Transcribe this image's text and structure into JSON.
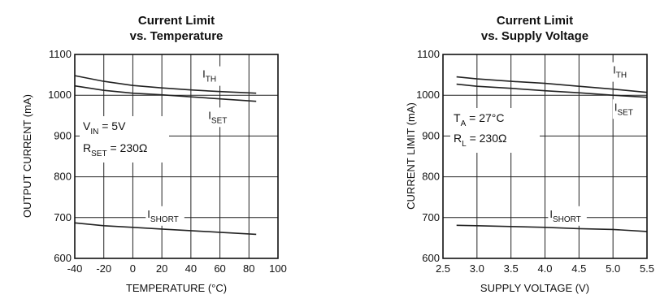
{
  "chart_data": [
    {
      "type": "line",
      "title": "Current Limit",
      "subtitle": "vs. Temperature",
      "xlabel": "TEMPERATURE (°C)",
      "ylabel": "OUTPUT CURRENT (mA)",
      "xlim": [
        -40,
        100
      ],
      "ylim": [
        600,
        1100
      ],
      "x_ticks": [
        -40,
        -20,
        0,
        20,
        40,
        60,
        80,
        100
      ],
      "y_ticks": [
        600,
        700,
        800,
        900,
        1000,
        1100
      ],
      "grid": true,
      "annotation": {
        "line1": {
          "main": "V",
          "sub": "IN",
          "rest": " = 5V"
        },
        "line2": {
          "main": "R",
          "sub": "SET",
          "rest": " = 230Ω"
        }
      },
      "series": [
        {
          "name": "TH",
          "prefix": "I",
          "label_at": [
            48,
            1043
          ],
          "points": [
            [
              -40,
              1048
            ],
            [
              -20,
              1034
            ],
            [
              0,
              1024
            ],
            [
              20,
              1018
            ],
            [
              40,
              1013
            ],
            [
              60,
              1009
            ],
            [
              85,
              1005
            ]
          ]
        },
        {
          "name": "SET",
          "prefix": "I",
          "label_at": [
            52,
            942
          ],
          "points": [
            [
              -40,
              1023
            ],
            [
              -20,
              1012
            ],
            [
              0,
              1005
            ],
            [
              20,
              1001
            ],
            [
              40,
              996
            ],
            [
              60,
              991
            ],
            [
              85,
              985
            ]
          ]
        },
        {
          "name": "SHORT",
          "prefix": "I",
          "label_at": [
            10,
            700
          ],
          "points": [
            [
              -40,
              687
            ],
            [
              -20,
              680
            ],
            [
              0,
              676
            ],
            [
              20,
              672
            ],
            [
              40,
              668
            ],
            [
              60,
              664
            ],
            [
              85,
              659
            ]
          ]
        }
      ]
    },
    {
      "type": "line",
      "title": "Current Limit",
      "subtitle": "vs. Supply Voltage",
      "xlabel": "SUPPLY VOLTAGE (V)",
      "ylabel": "CURRENT LIMIT (mA)",
      "xlim": [
        2.5,
        5.5
      ],
      "ylim": [
        600,
        1100
      ],
      "x_ticks": [
        2.5,
        3.0,
        3.5,
        4.0,
        4.5,
        5.0,
        5.5
      ],
      "y_ticks": [
        600,
        700,
        800,
        900,
        1000,
        1100
      ],
      "grid": true,
      "annotation": {
        "line1": {
          "main": "T",
          "sub": "A",
          "rest": " = 27°C"
        },
        "line2": {
          "main": "R",
          "sub": "L",
          "rest": " = 230Ω"
        }
      },
      "series": [
        {
          "name": "TH",
          "prefix": "I",
          "label_at": [
            5.0,
            1053
          ],
          "points": [
            [
              2.7,
              1045
            ],
            [
              3.0,
              1040
            ],
            [
              3.5,
              1034
            ],
            [
              4.0,
              1029
            ],
            [
              4.5,
              1022
            ],
            [
              5.0,
              1015
            ],
            [
              5.5,
              1007
            ]
          ]
        },
        {
          "name": "SET",
          "prefix": "I",
          "label_at": [
            5.02,
            962
          ],
          "points": [
            [
              2.7,
              1027
            ],
            [
              3.0,
              1022
            ],
            [
              3.5,
              1017
            ],
            [
              4.0,
              1011
            ],
            [
              4.5,
              1006
            ],
            [
              5.0,
              1000
            ],
            [
              5.5,
              995
            ]
          ]
        },
        {
          "name": "SHORT",
          "prefix": "I",
          "label_at": [
            4.07,
            700
          ],
          "points": [
            [
              2.7,
              681
            ],
            [
              3.0,
              680
            ],
            [
              3.5,
              678
            ],
            [
              4.0,
              676
            ],
            [
              4.5,
              673
            ],
            [
              5.0,
              671
            ],
            [
              5.5,
              666
            ]
          ]
        }
      ]
    }
  ]
}
